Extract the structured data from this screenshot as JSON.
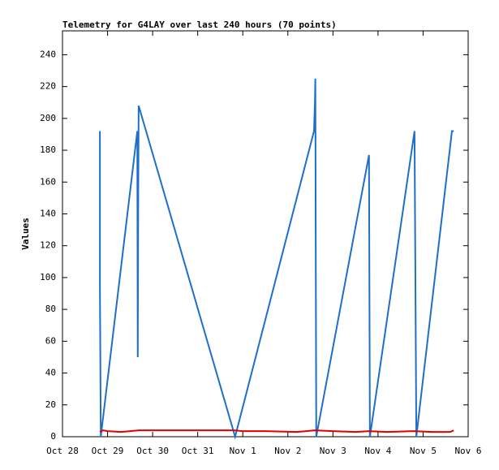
{
  "chart_data": {
    "type": "line",
    "title": "Telemetry for G4LAY over last 240 hours (70 points)",
    "y_label": "Values",
    "xlim": [
      0,
      9
    ],
    "ylim": [
      0,
      255
    ],
    "xticks": [
      {
        "value": 0,
        "label": "Oct 28"
      },
      {
        "value": 1,
        "label": "Oct 29"
      },
      {
        "value": 2,
        "label": "Oct 30"
      },
      {
        "value": 3,
        "label": "Oct 31"
      },
      {
        "value": 4,
        "label": "Nov 1"
      },
      {
        "value": 5,
        "label": "Nov 2"
      },
      {
        "value": 6,
        "label": "Nov 3"
      },
      {
        "value": 7,
        "label": "Nov 4"
      },
      {
        "value": 8,
        "label": "Nov 5"
      },
      {
        "value": 9,
        "label": "Nov 6"
      }
    ],
    "yticks": [
      0,
      20,
      40,
      60,
      80,
      100,
      120,
      140,
      160,
      180,
      200,
      220,
      240
    ],
    "series": [
      {
        "color": "#1f6fc8",
        "x": [
          0.83,
          0.83,
          0.85,
          1.66,
          1.67,
          1.68,
          1.69,
          3.83,
          5.58,
          5.6,
          5.61,
          5.62,
          5.63,
          6.8,
          6.82,
          7.81,
          7.83,
          7.85,
          8.64,
          8.68
        ],
        "values": [
          192,
          97,
          0,
          192,
          50,
          145,
          208,
          0,
          192,
          210,
          225,
          105,
          0,
          177,
          0,
          192,
          97,
          0,
          192,
          192
        ]
      },
      {
        "color": "#e00000",
        "x": [
          0.83,
          0.9,
          1.0,
          1.3,
          1.7,
          3.8,
          4.0,
          4.5,
          5.2,
          5.6,
          6.0,
          6.5,
          6.8,
          7.2,
          7.8,
          8.2,
          8.6,
          8.68
        ],
        "values": [
          3,
          4,
          3.5,
          3,
          4,
          4,
          3.5,
          3.5,
          3,
          4,
          3.5,
          3,
          3.5,
          3,
          3.5,
          3,
          3,
          4
        ]
      }
    ]
  }
}
